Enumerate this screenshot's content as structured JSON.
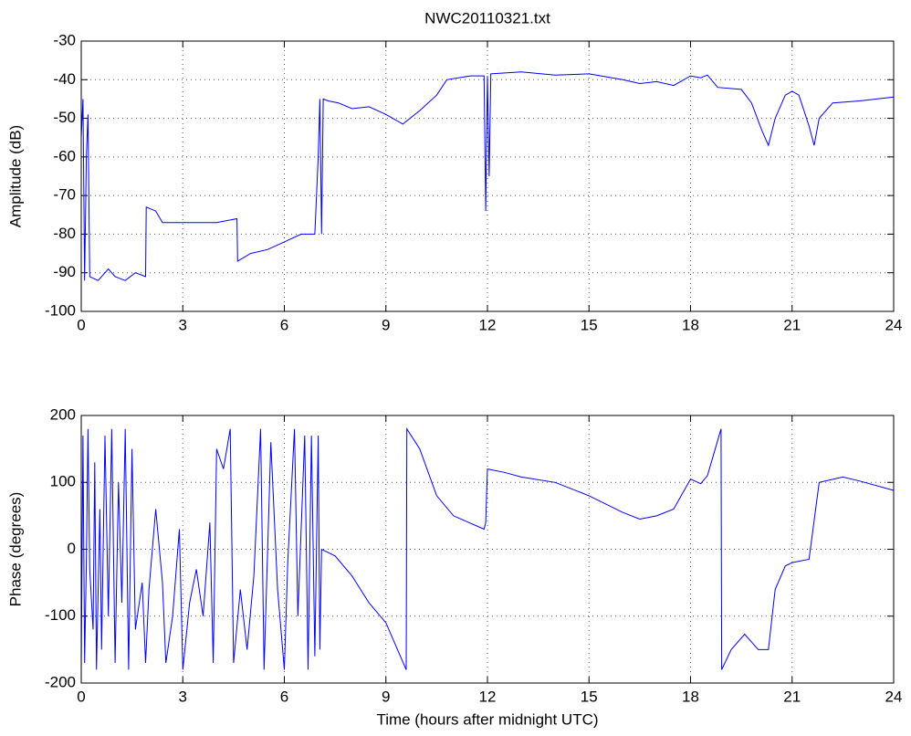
{
  "chart_data": [
    {
      "type": "line",
      "title": "NWC20110321.txt",
      "ylabel": "Amplitude (dB)",
      "x": [
        0,
        0.05,
        0.1,
        0.15,
        0.2,
        0.25,
        0.5,
        0.8,
        1.0,
        1.3,
        1.6,
        1.9,
        1.92,
        2.2,
        2.4,
        3,
        3.5,
        4,
        4.6,
        4.62,
        5,
        5.5,
        6,
        6.5,
        6.9,
        7.0,
        7.05,
        7.1,
        7.15,
        7.3,
        7.6,
        8,
        8.5,
        9,
        9.5,
        10,
        10.5,
        10.8,
        11.5,
        11.9,
        11.95,
        12.0,
        12.05,
        12.1,
        13,
        14,
        15,
        16,
        16.5,
        17,
        17.5,
        18,
        18.3,
        18.5,
        18.8,
        19.5,
        19.8,
        20.1,
        20.3,
        20.5,
        20.8,
        21,
        21.2,
        21.5,
        21.65,
        21.8,
        22.2,
        23,
        24
      ],
      "series": [
        {
          "color": "#0000ff",
          "values": [
            -55,
            -45,
            -92,
            -60,
            -49,
            -91,
            -92,
            -89,
            -91,
            -92,
            -90,
            -91,
            -73,
            -74,
            -77,
            -77,
            -77,
            -77,
            -76,
            -87,
            -85,
            -84,
            -82,
            -80,
            -80,
            -60,
            -45,
            -80,
            -45,
            -45.5,
            -46,
            -47.5,
            -47,
            -49,
            -51.5,
            -48,
            -44,
            -40,
            -39,
            -39,
            -74,
            -39,
            -65,
            -38.5,
            -38,
            -38.8,
            -38.5,
            -40,
            -41,
            -40.5,
            -41.5,
            -39,
            -39.5,
            -38.8,
            -42,
            -42.5,
            -46,
            -53,
            -57,
            -50,
            -44,
            -43,
            -44,
            -52,
            -57,
            -50,
            -46,
            -45.5,
            -44.5
          ]
        }
      ],
      "xlim": [
        0,
        24
      ],
      "xticks": [
        0,
        3,
        6,
        9,
        12,
        15,
        18,
        21,
        24
      ],
      "ylim": [
        -100,
        -30
      ],
      "yticks": [
        -100,
        -90,
        -80,
        -70,
        -60,
        -50,
        -40,
        -30
      ],
      "grid": true
    },
    {
      "type": "line",
      "ylabel": "Phase (degrees)",
      "xlabel": "Time (hours after midnight UTC)",
      "x": [
        0,
        0.05,
        0.1,
        0.15,
        0.2,
        0.25,
        0.35,
        0.4,
        0.45,
        0.55,
        0.6,
        0.7,
        0.8,
        0.9,
        1.0,
        1.1,
        1.2,
        1.3,
        1.4,
        1.5,
        1.6,
        1.8,
        1.9,
        2.0,
        2.2,
        2.4,
        2.5,
        2.7,
        2.9,
        3.0,
        3.2,
        3.4,
        3.6,
        3.8,
        3.9,
        4.0,
        4.2,
        4.4,
        4.5,
        4.7,
        4.9,
        5.1,
        5.3,
        5.4,
        5.6,
        5.8,
        6.0,
        6.1,
        6.3,
        6.4,
        6.6,
        6.7,
        6.8,
        6.9,
        7.0,
        7.05,
        7.1,
        7.5,
        8,
        8.5,
        9,
        9.6,
        9.62,
        10,
        10.5,
        11,
        11.9,
        11.95,
        12,
        12.5,
        13,
        14,
        15,
        16,
        16.5,
        17,
        17.5,
        18,
        18.3,
        18.5,
        18.9,
        18.92,
        19.2,
        19.6,
        20,
        20.3,
        20.5,
        20.8,
        21,
        21.5,
        21.8,
        22.5,
        23,
        24
      ],
      "series": [
        {
          "color": "#0000ff",
          "values": [
            -180,
            170,
            -170,
            -20,
            180,
            -30,
            -120,
            130,
            -180,
            60,
            -150,
            170,
            -100,
            180,
            -170,
            100,
            -80,
            180,
            -180,
            150,
            -120,
            -50,
            -170,
            -60,
            60,
            -50,
            -170,
            -100,
            30,
            -180,
            -80,
            -30,
            -100,
            40,
            -170,
            150,
            120,
            180,
            -170,
            -60,
            -150,
            -40,
            180,
            -180,
            160,
            -60,
            -180,
            -20,
            180,
            -100,
            170,
            -180,
            170,
            -160,
            170,
            -150,
            0,
            -10,
            -40,
            -80,
            -110,
            -180,
            180,
            150,
            80,
            50,
            30,
            40,
            120,
            115,
            108,
            100,
            80,
            55,
            45,
            50,
            60,
            105,
            98,
            110,
            180,
            -180,
            -150,
            -127,
            -150,
            -150,
            -60,
            -25,
            -20,
            -15,
            100,
            108,
            102,
            88
          ]
        }
      ],
      "xlim": [
        0,
        24
      ],
      "xticks": [
        0,
        3,
        6,
        9,
        12,
        15,
        18,
        21,
        24
      ],
      "ylim": [
        -200,
        200
      ],
      "yticks": [
        -200,
        -100,
        0,
        100,
        200
      ],
      "grid": true
    }
  ]
}
